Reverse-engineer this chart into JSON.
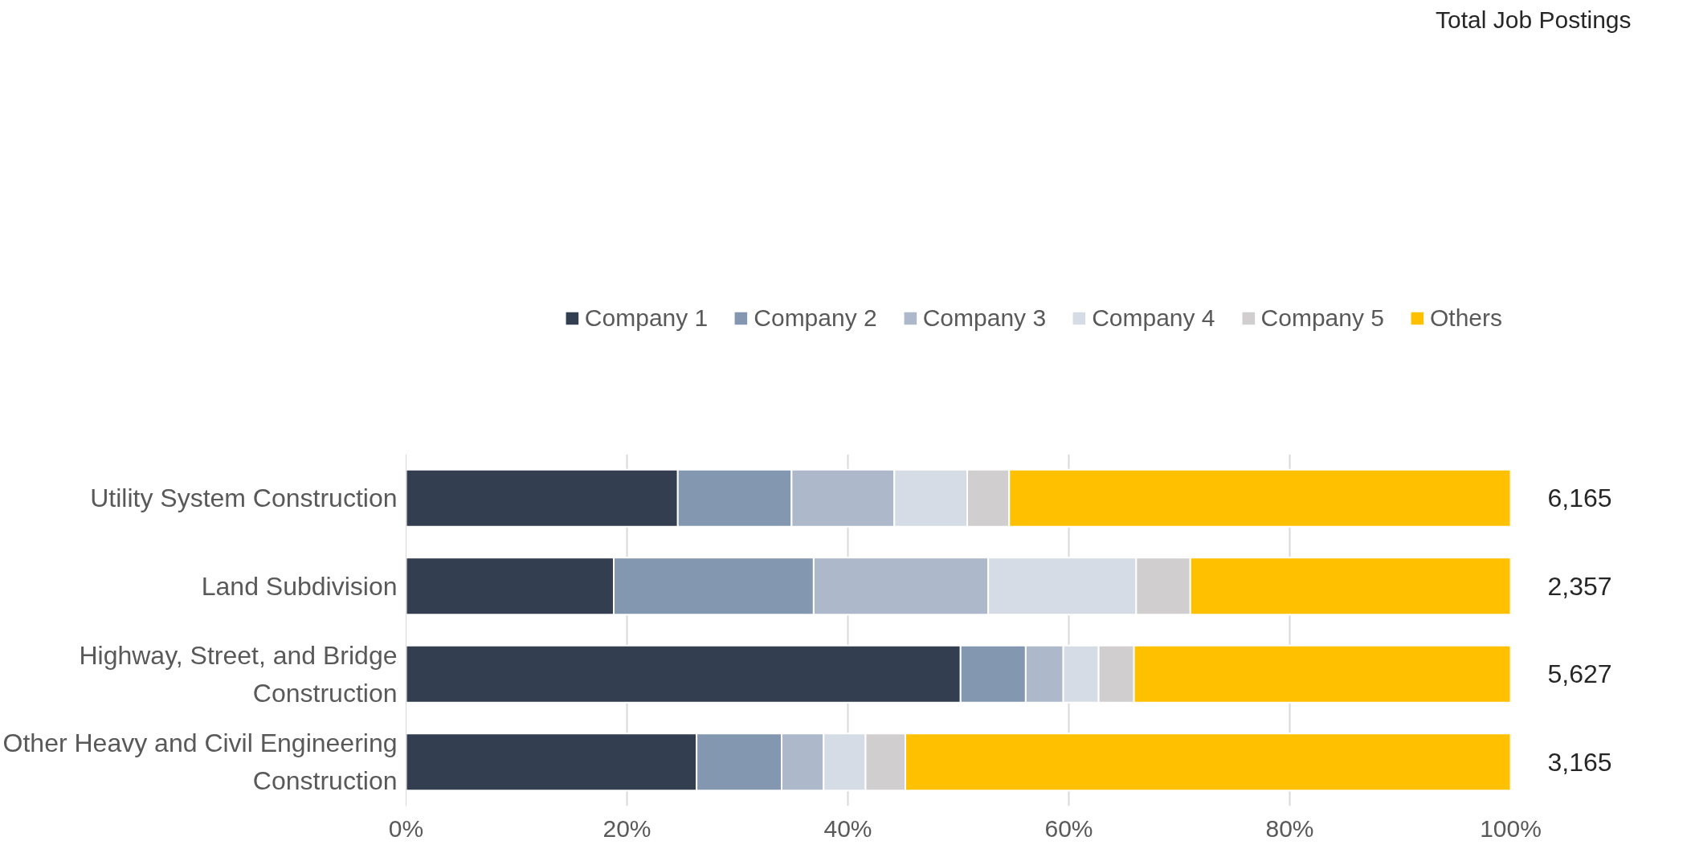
{
  "chart_data": {
    "type": "bar",
    "orientation": "horizontal",
    "stacked": true,
    "categories": [
      "Utility System Construction",
      "Land Subdivision",
      "Highway, Street, and Bridge Construction",
      "Other Heavy and Civil Engineering Construction"
    ],
    "series": [
      {
        "name": "Company 1",
        "color": "#333e50",
        "values": [
          24.6,
          18.8,
          50.2,
          26.3
        ]
      },
      {
        "name": "Company 2",
        "color": "#8497b0",
        "values": [
          10.3,
          18.1,
          5.9,
          7.7
        ]
      },
      {
        "name": "Company 3",
        "color": "#adb9ca",
        "values": [
          9.3,
          15.8,
          3.4,
          3.8
        ]
      },
      {
        "name": "Company 4",
        "color": "#d6dce5",
        "values": [
          6.6,
          13.4,
          3.2,
          3.8
        ]
      },
      {
        "name": "Company 5",
        "color": "#d0cece",
        "values": [
          3.8,
          4.9,
          3.2,
          3.6
        ]
      },
      {
        "name": "Others",
        "color": "#ffc000",
        "values": [
          45.4,
          29.0,
          34.1,
          54.8
        ]
      }
    ],
    "xlim": [
      0,
      100
    ],
    "xticks": [
      {
        "value": 0,
        "label": "0%"
      },
      {
        "value": 20,
        "label": "20%"
      },
      {
        "value": 40,
        "label": "40%"
      },
      {
        "value": 60,
        "label": "60%"
      },
      {
        "value": 80,
        "label": "80%"
      },
      {
        "value": 100,
        "label": "100%"
      }
    ],
    "grid": "x",
    "legend": "top",
    "annotations": [
      "Total Job Postings",
      "6,165",
      "2,357",
      "5,627",
      "3,165"
    ]
  }
}
